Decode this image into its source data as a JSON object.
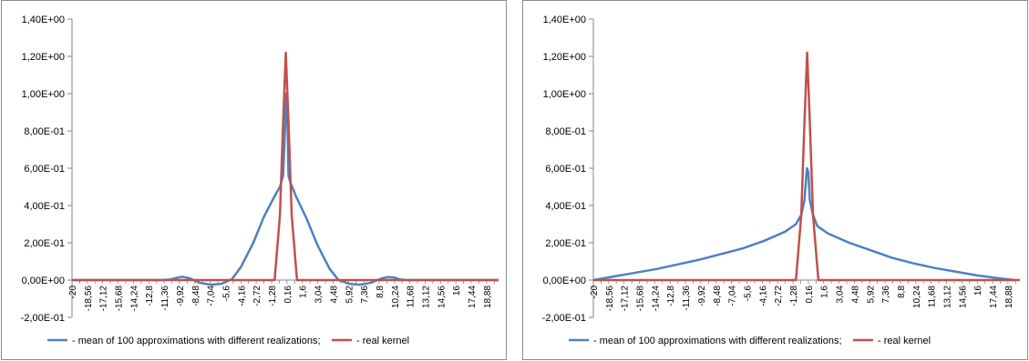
{
  "chart_data": [
    {
      "type": "line",
      "title": "",
      "xlabel": "",
      "ylabel": "",
      "ylim": [
        -0.2,
        1.4
      ],
      "xlim": [
        -20,
        20
      ],
      "y_tick_labels": [
        "-2,00E-01",
        "0,00E+00",
        "2,00E-01",
        "4,00E-01",
        "6,00E-01",
        "8,00E-01",
        "1,00E+00",
        "1,20E+00",
        "1,40E+00"
      ],
      "y_tick_values": [
        -0.2,
        0,
        0.2,
        0.4,
        0.6,
        0.8,
        1.0,
        1.2,
        1.4
      ],
      "x_tick_labels": [
        "-20",
        "-18,56",
        "-17,12",
        "-15,68",
        "-14,24",
        "-12,8",
        "-11,36",
        "-9,92",
        "-8,48",
        "-7,04",
        "-5,6",
        "-4,16",
        "-2,72",
        "-1,28",
        "0,16",
        "1,6",
        "3,04",
        "4,48",
        "5,92",
        "7,36",
        "8,8",
        "10,24",
        "11,68",
        "13,12",
        "14,56",
        "16",
        "17,44",
        "18,88"
      ],
      "x_tick_values": [
        -20,
        -18.56,
        -17.12,
        -15.68,
        -14.24,
        -12.8,
        -11.36,
        -9.92,
        -8.48,
        -7.04,
        -5.6,
        -4.16,
        -2.72,
        -1.28,
        0.16,
        1.6,
        3.04,
        4.48,
        5.92,
        7.36,
        8.8,
        10.24,
        11.68,
        13.12,
        14.56,
        16,
        17.44,
        18.88
      ],
      "grid": false,
      "legend": "bottom",
      "series": [
        {
          "name": "- mean of 100 approximations with different realizations;",
          "color": "#4f81bd",
          "x": [
            -20,
            -11.5,
            -10.8,
            -10.2,
            -9.7,
            -9.0,
            -8.0,
            -7.0,
            -6.0,
            -5.0,
            -4.16,
            -3.0,
            -2.0,
            -1.0,
            -0.5,
            -0.2,
            0.0,
            0.05,
            0.16,
            0.3,
            0.5,
            1.0,
            2.0,
            3.0,
            4.16,
            5.0,
            6.0,
            7.0,
            8.0,
            9.0,
            9.6,
            10.2,
            10.8,
            11.5,
            20
          ],
          "y": [
            0,
            0,
            0.003,
            0.012,
            0.018,
            0.01,
            -0.015,
            -0.025,
            -0.02,
            0.005,
            0.07,
            0.2,
            0.34,
            0.45,
            0.5,
            0.56,
            0.85,
            1.0,
            0.98,
            0.56,
            0.52,
            0.45,
            0.33,
            0.19,
            0.06,
            0.0,
            -0.02,
            -0.025,
            -0.015,
            0.008,
            0.016,
            0.014,
            0.003,
            0,
            0
          ]
        },
        {
          "name": "- real kernel",
          "color": "#c0504d",
          "x": [
            -20,
            -1.0,
            -0.5,
            -0.2,
            0.05,
            0.3,
            0.6,
            1.1,
            20
          ],
          "y": [
            0,
            0,
            0.35,
            0.85,
            1.22,
            0.85,
            0.35,
            0,
            0
          ]
        }
      ]
    },
    {
      "type": "line",
      "title": "",
      "xlabel": "",
      "ylabel": "",
      "ylim": [
        -0.2,
        1.4
      ],
      "xlim": [
        -20,
        20
      ],
      "y_tick_labels": [
        "-2,00E-01",
        "0,00E+00",
        "2,00E-01",
        "4,00E-01",
        "6,00E-01",
        "8,00E-01",
        "1,00E+00",
        "1,20E+00",
        "1,40E+00"
      ],
      "y_tick_values": [
        -0.2,
        0,
        0.2,
        0.4,
        0.6,
        0.8,
        1.0,
        1.2,
        1.4
      ],
      "x_tick_labels": [
        "-20",
        "-18,56",
        "-17,12",
        "-15,68",
        "-14,24",
        "-12,8",
        "-11,36",
        "-9,92",
        "-8,48",
        "-7,04",
        "-5,6",
        "-4,16",
        "-2,72",
        "-1,28",
        "0,16",
        "1,6",
        "3,04",
        "4,48",
        "5,92",
        "7,36",
        "8,8",
        "10,24",
        "11,68",
        "13,12",
        "14,56",
        "16",
        "17,44",
        "18,88"
      ],
      "x_tick_values": [
        -20,
        -18.56,
        -17.12,
        -15.68,
        -14.24,
        -12.8,
        -11.36,
        -9.92,
        -8.48,
        -7.04,
        -5.6,
        -4.16,
        -2.72,
        -1.28,
        0.16,
        1.6,
        3.04,
        4.48,
        5.92,
        7.36,
        8.8,
        10.24,
        11.68,
        13.12,
        14.56,
        16,
        17.44,
        18.88
      ],
      "grid": false,
      "legend": "bottom",
      "series": [
        {
          "name": "- mean of 100 approximations with different realizations;",
          "color": "#4f81bd",
          "x": [
            -20,
            -18,
            -16,
            -14,
            -12,
            -10,
            -8,
            -6,
            -4,
            -2,
            -1,
            -0.5,
            -0.2,
            0.0,
            0.05,
            0.16,
            0.3,
            0.6,
            1,
            2,
            4,
            6,
            8,
            10,
            12,
            14,
            16,
            18,
            19.5
          ],
          "y": [
            0,
            0.02,
            0.04,
            0.06,
            0.085,
            0.11,
            0.14,
            0.17,
            0.21,
            0.26,
            0.3,
            0.35,
            0.43,
            0.58,
            0.6,
            0.58,
            0.43,
            0.35,
            0.29,
            0.25,
            0.2,
            0.16,
            0.12,
            0.09,
            0.065,
            0.045,
            0.025,
            0.01,
            0
          ]
        },
        {
          "name": "- real kernel",
          "color": "#c0504d",
          "x": [
            -20,
            -1.0,
            -0.5,
            -0.2,
            0.05,
            0.3,
            0.6,
            1.1,
            20
          ],
          "y": [
            0,
            0,
            0.35,
            0.85,
            1.22,
            0.85,
            0.35,
            0,
            0
          ]
        }
      ]
    }
  ]
}
